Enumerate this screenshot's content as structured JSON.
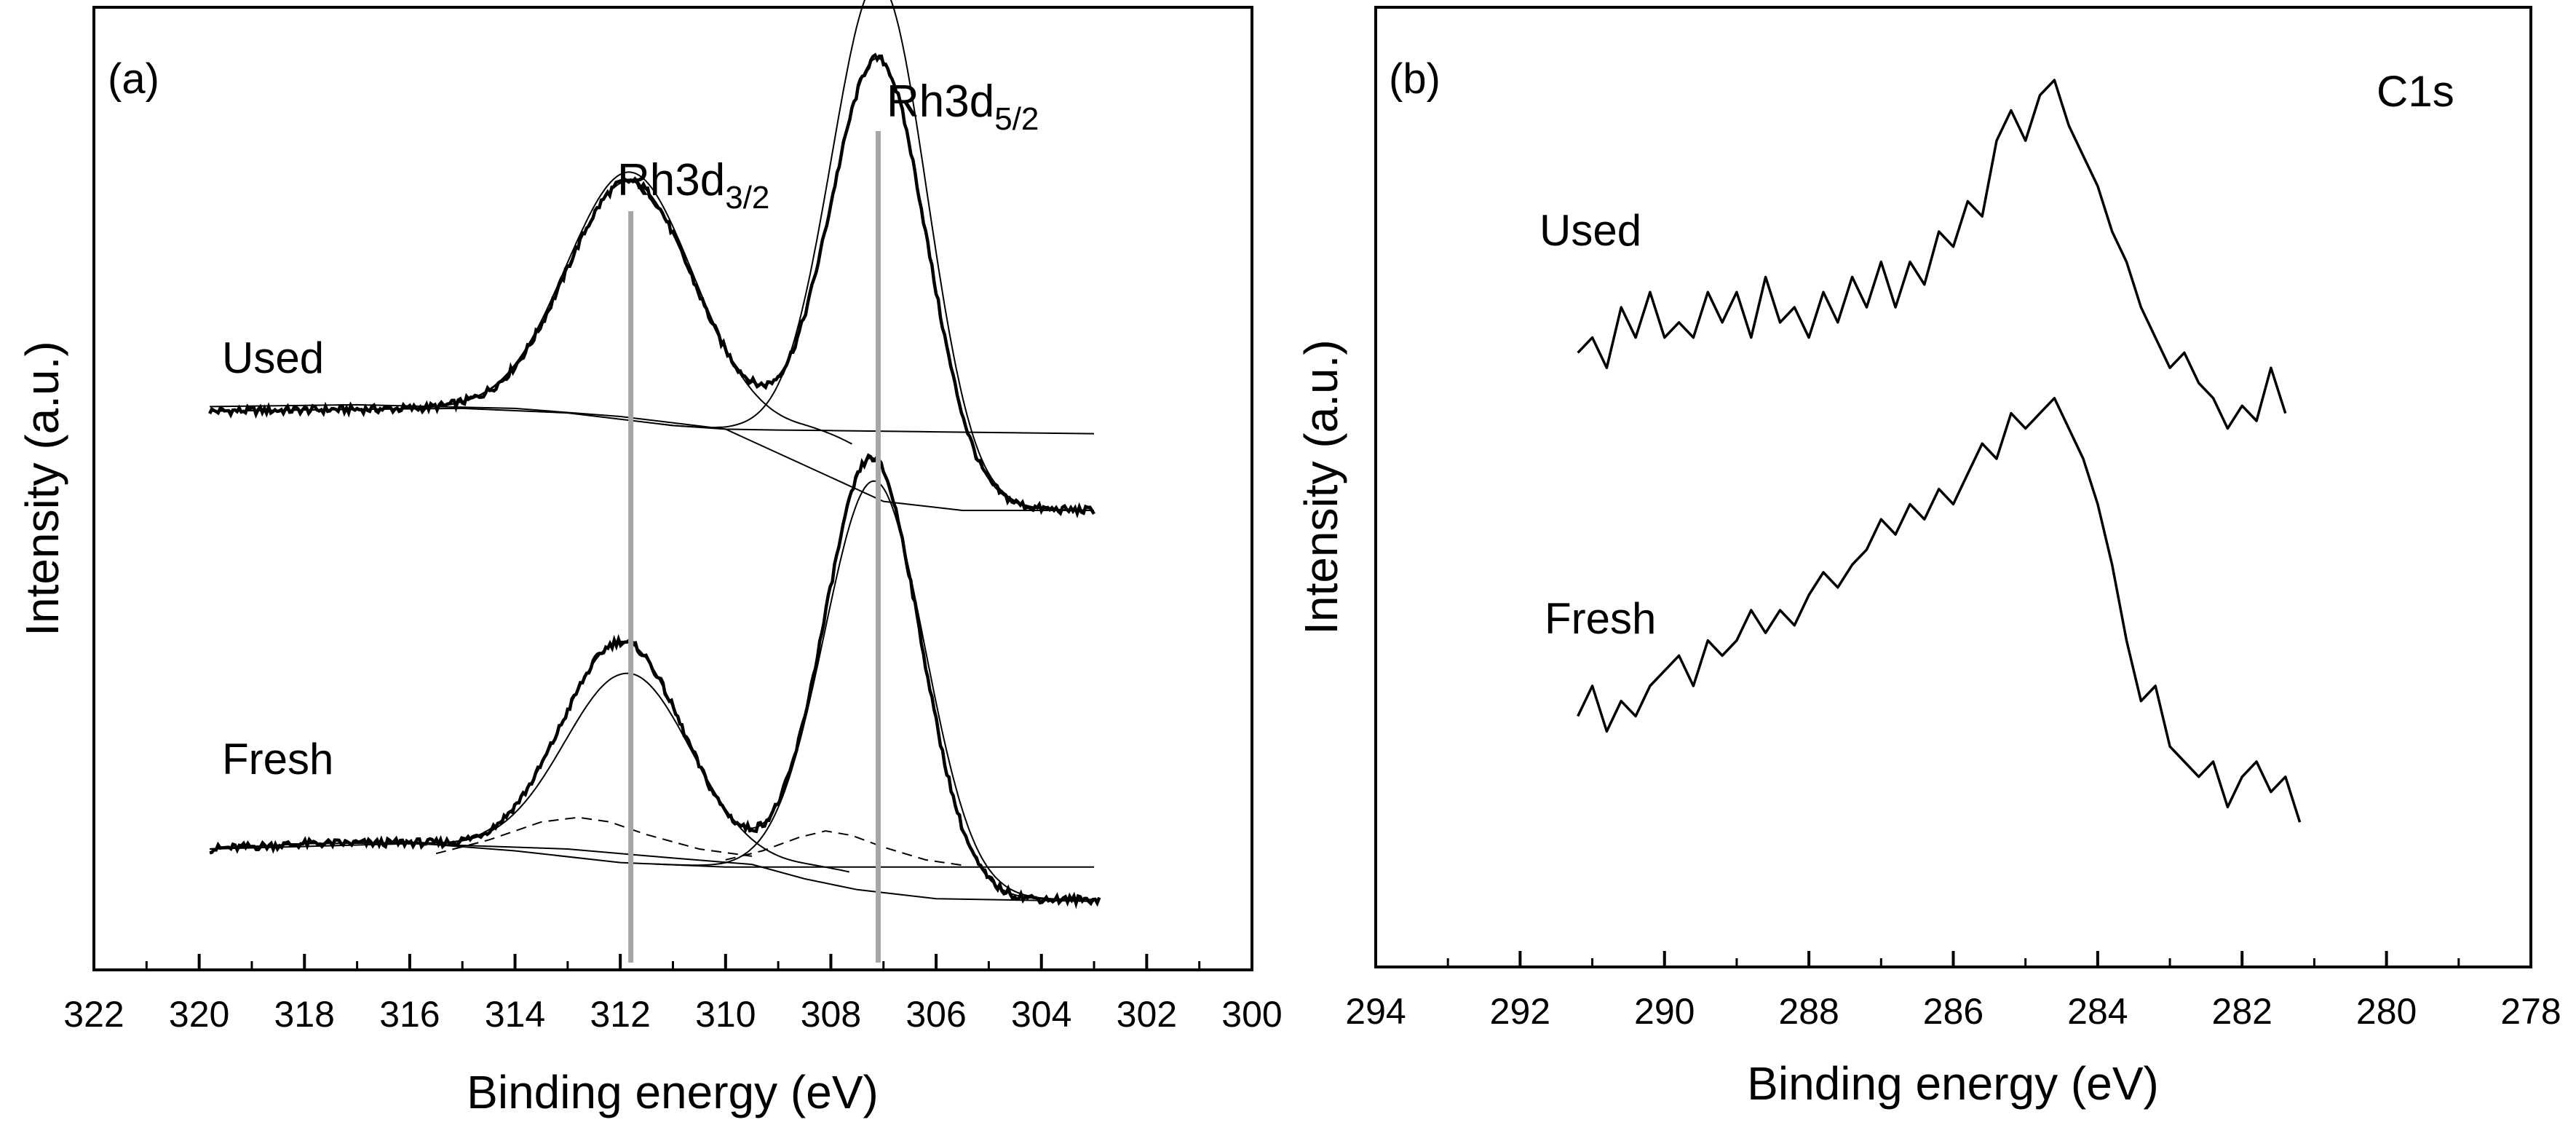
{
  "colors": {
    "line": "#000000",
    "reference_line": "#a6a6a6",
    "background": "#ffffff"
  },
  "chart_data": [
    {
      "type": "line",
      "panel_label": "(a)",
      "title": "",
      "xlabel": "Binding energy (eV)",
      "ylabel": "Intensity (a.u.)",
      "xlim": [
        322,
        300
      ],
      "ylim": [
        0,
        100
      ],
      "x_ticks": [
        322,
        320,
        318,
        316,
        314,
        312,
        310,
        308,
        306,
        304,
        302,
        300
      ],
      "x_tick_labels": [
        "322",
        "320",
        "318",
        "316",
        "314",
        "312",
        "310",
        "308",
        "306",
        "304",
        "302",
        "300"
      ],
      "reference_lines": [
        {
          "x": 311.8,
          "label_main": "Rh3d",
          "label_sub": "3/2"
        },
        {
          "x": 307.1,
          "label_main": "Rh3d",
          "label_sub": "5/2"
        }
      ],
      "sample_labels": [
        {
          "text": "Used",
          "x": 319.5,
          "y": 68
        },
        {
          "text": "Fresh",
          "x": 319.5,
          "y": 24
        }
      ],
      "offsets": {
        "used": 56,
        "fresh": 8
      },
      "fit_components": {
        "used": [
          {
            "name": "background",
            "style": "solid",
            "points": [
              [
                319.8,
                2.5
              ],
              [
                317,
                2.7
              ],
              [
                315,
                2.8
              ],
              [
                313,
                2.3
              ],
              [
                311,
                0.9
              ],
              [
                310,
                0.5
              ],
              [
                309,
                0.4
              ],
              [
                308,
                0.35
              ],
              [
                306,
                0.2
              ],
              [
                303,
                0
              ]
            ]
          },
          {
            "name": "tail_baseline",
            "style": "solid",
            "points": [
              [
                319.8,
                3.0
              ],
              [
                317,
                3.2
              ],
              [
                314,
                2.8
              ],
              [
                312,
                1.9
              ],
              [
                310,
                0.5
              ],
              [
                308.5,
                -3.5
              ],
              [
                307,
                -7.5
              ],
              [
                305.5,
                -8.5
              ],
              [
                303,
                -8.5
              ]
            ]
          }
        ],
        "fresh": [
          {
            "name": "background",
            "style": "solid",
            "points": [
              [
                319.8,
                2.0
              ],
              [
                318,
                2.6
              ],
              [
                316,
                2.7
              ],
              [
                314,
                1.8
              ],
              [
                312,
                0.5
              ],
              [
                310,
                0
              ],
              [
                307,
                0
              ],
              [
                303,
                0
              ]
            ]
          },
          {
            "name": "tail_baseline",
            "style": "solid",
            "points": [
              [
                319.8,
                2.0
              ],
              [
                316,
                2.6
              ],
              [
                313,
                2.0
              ],
              [
                311,
                1.0
              ],
              [
                309.5,
                0.3
              ],
              [
                308.5,
                -1.3
              ],
              [
                307.5,
                -2.5
              ],
              [
                306,
                -3.5
              ],
              [
                303,
                -3.8
              ]
            ]
          },
          {
            "name": "shoulder_3d3_2",
            "style": "dashed",
            "points": [
              [
                315.5,
                1.5
              ],
              [
                314.5,
                3.0
              ],
              [
                313.5,
                5.0
              ],
              [
                312.8,
                5.5
              ],
              [
                312.2,
                5.0
              ],
              [
                311.5,
                3.6
              ],
              [
                310.5,
                2.0
              ],
              [
                309.5,
                1.2
              ]
            ]
          },
          {
            "name": "shoulder_3d5_2",
            "style": "dashed",
            "points": [
              [
                310,
                0.8
              ],
              [
                309.3,
                1.8
              ],
              [
                308.6,
                3.3
              ],
              [
                308.1,
                4.0
              ],
              [
                307.6,
                3.5
              ],
              [
                307,
                2.2
              ],
              [
                306.2,
                0.8
              ],
              [
                305.5,
                0.2
              ]
            ]
          }
        ]
      },
      "series": [
        {
          "name": "Used",
          "composite": true,
          "peaks": [
            {
              "center": 311.8,
              "height": 26.5,
              "width": 1.2
            },
            {
              "center": 307.05,
              "height": 44.5,
              "width": 0.9
            }
          ],
          "fit_peaks": [
            {
              "center": 311.8,
              "height": 27.5,
              "width": 1.2
            },
            {
              "center": 307.05,
              "height": 53.0,
              "width": 0.9
            }
          ],
          "tail": {
            "start": 308.6,
            "end": 305.0,
            "drop": 8.5
          },
          "background": [
            [
              319.8,
              2.5
            ],
            [
              317,
              2.7
            ],
            [
              315,
              2.8
            ],
            [
              313,
              2.3
            ],
            [
              311,
              0.9
            ],
            [
              310,
              0.5
            ],
            [
              309,
              0.4
            ],
            [
              308,
              0.35
            ],
            [
              306,
              0.2
            ],
            [
              303,
              0
            ]
          ],
          "x_range": [
            319.8,
            303.0
          ]
        },
        {
          "name": "Fresh",
          "composite": true,
          "peaks": [
            {
              "center": 311.95,
              "height": 24.5,
              "width": 1.15
            },
            {
              "center": 307.2,
              "height": 46.5,
              "width": 0.9
            }
          ],
          "fit_peaks": [
            {
              "center": 311.85,
              "height": 21.0,
              "width": 1.2
            },
            {
              "center": 307.15,
              "height": 44.0,
              "width": 0.95
            }
          ],
          "tail": {
            "start": 308.6,
            "end": 305.0,
            "drop": 3.6
          },
          "background": [
            [
              319.8,
              2.0
            ],
            [
              318,
              2.6
            ],
            [
              316,
              2.7
            ],
            [
              314,
              1.8
            ],
            [
              312,
              0.5
            ],
            [
              310,
              0
            ],
            [
              307,
              0
            ],
            [
              303,
              0
            ]
          ],
          "x_range": [
            319.8,
            302.9
          ]
        }
      ]
    },
    {
      "type": "line",
      "panel_label": "(b)",
      "title": "C1s",
      "xlabel": "Binding energy (eV)",
      "ylabel": "Intensity (a.u.)",
      "xlim": [
        294,
        278
      ],
      "ylim": [
        0,
        100
      ],
      "x_ticks": [
        294,
        292,
        290,
        288,
        286,
        284,
        282,
        280,
        278
      ],
      "x_tick_labels": [
        "294",
        "292",
        "290",
        "288",
        "286",
        "284",
        "282",
        "280",
        "278"
      ],
      "sample_labels": [
        {
          "text": "Used",
          "x": 291.3,
          "y": 82
        },
        {
          "text": "Fresh",
          "x": 291.3,
          "y": 38
        }
      ],
      "series": [
        {
          "name": "Used",
          "points": [
            [
              291.2,
              64
            ],
            [
              291.0,
              66
            ],
            [
              290.8,
              62
            ],
            [
              290.6,
              70
            ],
            [
              290.4,
              66
            ],
            [
              290.2,
              72
            ],
            [
              290.0,
              66
            ],
            [
              289.8,
              68
            ],
            [
              289.6,
              66
            ],
            [
              289.4,
              72
            ],
            [
              289.2,
              68
            ],
            [
              289.0,
              72
            ],
            [
              288.8,
              66
            ],
            [
              288.6,
              74
            ],
            [
              288.4,
              68
            ],
            [
              288.2,
              70
            ],
            [
              288.0,
              66
            ],
            [
              287.8,
              72
            ],
            [
              287.6,
              68
            ],
            [
              287.4,
              74
            ],
            [
              287.2,
              70
            ],
            [
              287.0,
              76
            ],
            [
              286.8,
              70
            ],
            [
              286.6,
              76
            ],
            [
              286.4,
              73
            ],
            [
              286.2,
              80
            ],
            [
              286.0,
              78
            ],
            [
              285.8,
              84
            ],
            [
              285.6,
              82
            ],
            [
              285.4,
              92
            ],
            [
              285.2,
              96
            ],
            [
              285.0,
              92
            ],
            [
              284.8,
              98
            ],
            [
              284.6,
              100
            ],
            [
              284.4,
              94
            ],
            [
              284.2,
              90
            ],
            [
              284.0,
              86
            ],
            [
              283.8,
              80
            ],
            [
              283.6,
              76
            ],
            [
              283.4,
              70
            ],
            [
              283.2,
              66
            ],
            [
              283.0,
              62
            ],
            [
              282.8,
              64
            ],
            [
              282.6,
              60
            ],
            [
              282.4,
              58
            ],
            [
              282.2,
              54
            ],
            [
              282.0,
              57
            ],
            [
              281.8,
              55
            ],
            [
              281.6,
              62
            ],
            [
              281.4,
              56
            ]
          ]
        },
        {
          "name": "Fresh",
          "points": [
            [
              291.2,
              16
            ],
            [
              291.0,
              20
            ],
            [
              290.8,
              14
            ],
            [
              290.6,
              18
            ],
            [
              290.4,
              16
            ],
            [
              290.2,
              20
            ],
            [
              290.0,
              22
            ],
            [
              289.8,
              24
            ],
            [
              289.6,
              20
            ],
            [
              289.4,
              26
            ],
            [
              289.2,
              24
            ],
            [
              289.0,
              26
            ],
            [
              288.8,
              30
            ],
            [
              288.6,
              27
            ],
            [
              288.4,
              30
            ],
            [
              288.2,
              28
            ],
            [
              288.0,
              32
            ],
            [
              287.8,
              35
            ],
            [
              287.6,
              33
            ],
            [
              287.4,
              36
            ],
            [
              287.2,
              38
            ],
            [
              287.0,
              42
            ],
            [
              286.8,
              40
            ],
            [
              286.6,
              44
            ],
            [
              286.4,
              42
            ],
            [
              286.2,
              46
            ],
            [
              286.0,
              44
            ],
            [
              285.8,
              48
            ],
            [
              285.6,
              52
            ],
            [
              285.4,
              50
            ],
            [
              285.2,
              56
            ],
            [
              285.0,
              54
            ],
            [
              284.8,
              56
            ],
            [
              284.6,
              58
            ],
            [
              284.4,
              54
            ],
            [
              284.2,
              50
            ],
            [
              284.0,
              44
            ],
            [
              283.8,
              36
            ],
            [
              283.6,
              26
            ],
            [
              283.4,
              18
            ],
            [
              283.2,
              20
            ],
            [
              283.0,
              12
            ],
            [
              282.8,
              10
            ],
            [
              282.6,
              8
            ],
            [
              282.4,
              10
            ],
            [
              282.2,
              4
            ],
            [
              282.0,
              8
            ],
            [
              281.8,
              10
            ],
            [
              281.6,
              6
            ],
            [
              281.4,
              8
            ],
            [
              281.2,
              2
            ]
          ]
        }
      ]
    }
  ]
}
